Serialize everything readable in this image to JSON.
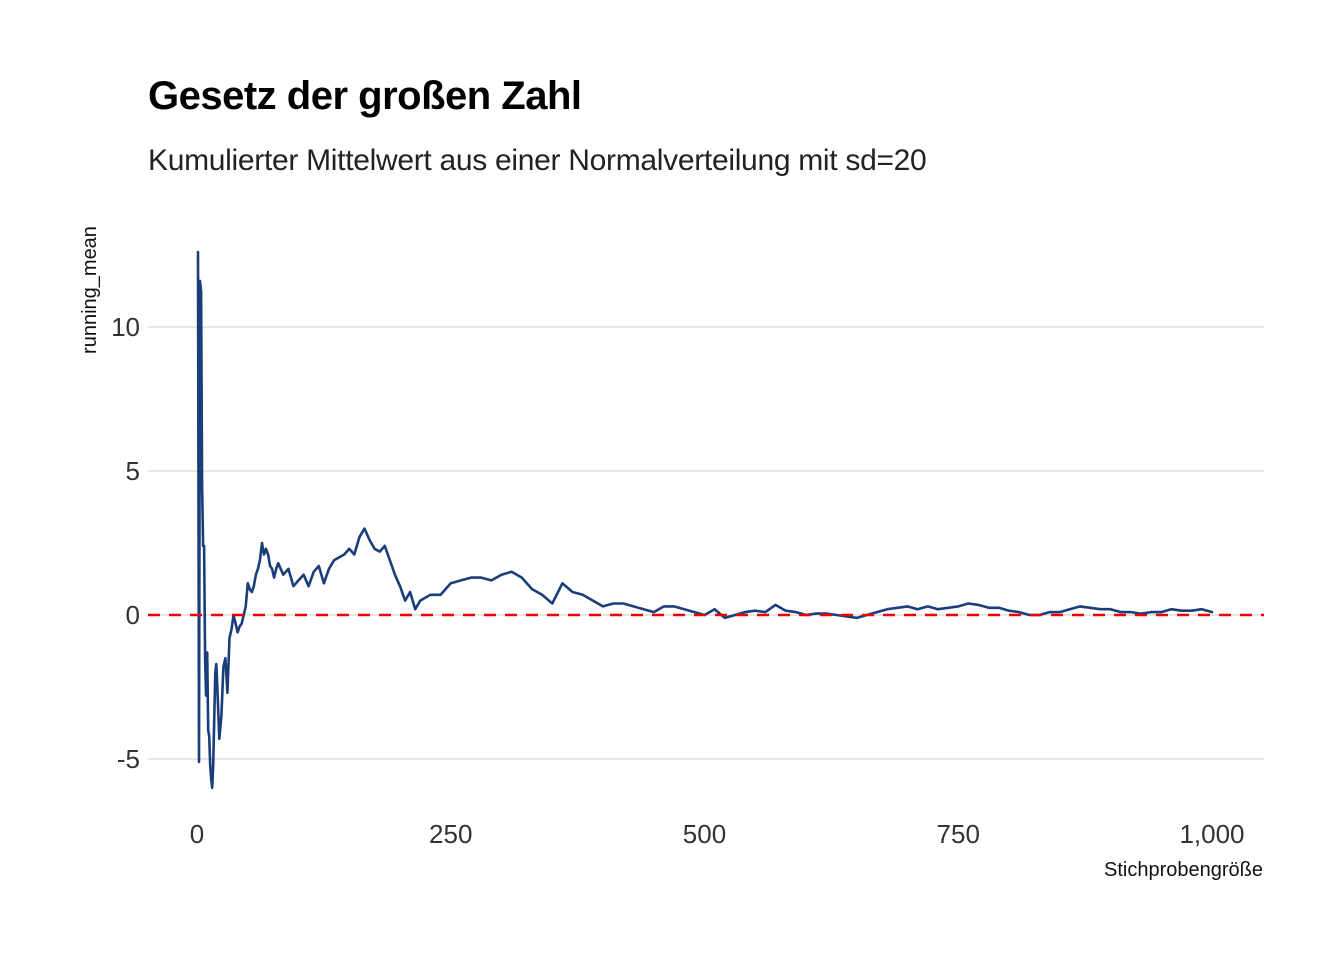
{
  "chart_data": {
    "type": "line",
    "title": "Gesetz der großen Zahl",
    "subtitle": "Kumulierter Mittelwert aus einer Normalverteilung mit sd=20",
    "xlabel": "Stichprobengröße",
    "ylabel": "running_mean",
    "xlim": [
      0,
      1000
    ],
    "ylim": [
      -6,
      12.7
    ],
    "x_ticks": [
      0,
      250,
      500,
      750,
      1000
    ],
    "x_tick_labels": [
      "0",
      "250",
      "500",
      "750",
      "1,000"
    ],
    "y_ticks": [
      -5,
      0,
      5,
      10
    ],
    "y_tick_labels": [
      "-5",
      "0",
      "5",
      "10"
    ],
    "grid": "horizontal",
    "reference_line": {
      "y": 0,
      "color": "#ee0000",
      "style": "dashed"
    },
    "line_color": "#1a3e7a",
    "series": [
      {
        "x": [
          1,
          2,
          3,
          4,
          5,
          6,
          7,
          8,
          9,
          10,
          11,
          12,
          13,
          14,
          15,
          16,
          17,
          18,
          19,
          20,
          22,
          24,
          26,
          28,
          30,
          32,
          34,
          36,
          38,
          40,
          42,
          44,
          46,
          48,
          50,
          52,
          54,
          56,
          58,
          60,
          62,
          64,
          66,
          68,
          70,
          72,
          74,
          76,
          78,
          80,
          85,
          90,
          95,
          100,
          105,
          110,
          115,
          120,
          125,
          130,
          135,
          140,
          145,
          150,
          155,
          160,
          165,
          170,
          175,
          180,
          185,
          190,
          195,
          200,
          205,
          210,
          215,
          220,
          230,
          240,
          250,
          260,
          270,
          280,
          290,
          300,
          310,
          320,
          330,
          340,
          350,
          360,
          370,
          380,
          390,
          400,
          410,
          420,
          430,
          440,
          450,
          460,
          470,
          480,
          490,
          500,
          510,
          520,
          530,
          540,
          550,
          560,
          570,
          580,
          590,
          600,
          610,
          620,
          630,
          640,
          650,
          660,
          670,
          680,
          690,
          700,
          710,
          720,
          730,
          740,
          750,
          760,
          770,
          780,
          790,
          800,
          810,
          820,
          830,
          840,
          850,
          860,
          870,
          880,
          890,
          900,
          910,
          920,
          930,
          940,
          950,
          960,
          970,
          980,
          990,
          1000
        ],
        "values": [
          12.6,
          -5.1,
          11.6,
          11.2,
          4.5,
          2.4,
          2.4,
          -1.5,
          -2.8,
          -1.3,
          -4.0,
          -4.2,
          -5.2,
          -5.7,
          -6.0,
          -5.2,
          -3.5,
          -2.0,
          -1.7,
          -2.5,
          -4.3,
          -3.5,
          -1.8,
          -1.5,
          -2.7,
          -0.8,
          -0.5,
          0.0,
          -0.3,
          -0.6,
          -0.4,
          -0.3,
          0.0,
          0.3,
          1.1,
          0.9,
          0.8,
          1.0,
          1.4,
          1.6,
          1.9,
          2.5,
          2.1,
          2.3,
          2.1,
          1.7,
          1.6,
          1.3,
          1.6,
          1.8,
          1.4,
          1.6,
          1.0,
          1.2,
          1.4,
          1.0,
          1.5,
          1.7,
          1.1,
          1.6,
          1.9,
          2.0,
          2.1,
          2.3,
          2.1,
          2.7,
          3.0,
          2.6,
          2.3,
          2.2,
          2.4,
          1.9,
          1.4,
          1.0,
          0.5,
          0.8,
          0.2,
          0.5,
          0.7,
          0.7,
          1.1,
          1.2,
          1.3,
          1.3,
          1.2,
          1.4,
          1.5,
          1.3,
          0.9,
          0.7,
          0.4,
          1.1,
          0.8,
          0.7,
          0.5,
          0.3,
          0.4,
          0.4,
          0.3,
          0.2,
          0.1,
          0.3,
          0.3,
          0.2,
          0.1,
          0.0,
          0.2,
          -0.1,
          0.0,
          0.1,
          0.15,
          0.1,
          0.35,
          0.15,
          0.1,
          0.0,
          0.05,
          0.05,
          0.0,
          -0.05,
          -0.1,
          0.0,
          0.1,
          0.2,
          0.25,
          0.3,
          0.2,
          0.3,
          0.2,
          0.25,
          0.3,
          0.4,
          0.35,
          0.25,
          0.25,
          0.15,
          0.1,
          0.0,
          0.0,
          0.1,
          0.1,
          0.2,
          0.3,
          0.25,
          0.2,
          0.2,
          0.1,
          0.1,
          0.05,
          0.1,
          0.1,
          0.2,
          0.15,
          0.15,
          0.2,
          0.1
        ]
      }
    ]
  }
}
